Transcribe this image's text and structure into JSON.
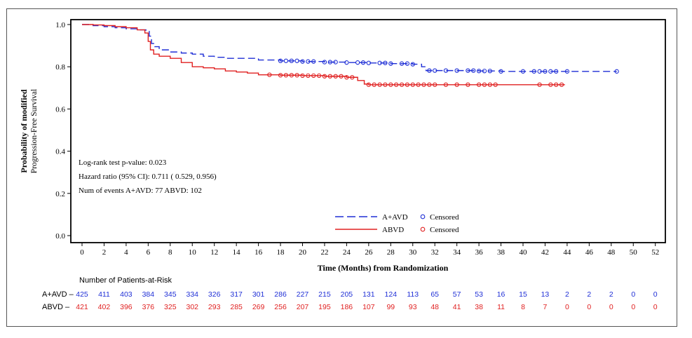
{
  "chart_data": {
    "type": "line",
    "subtype": "kaplan-meier",
    "ylabel_lines": [
      "Probability of modified",
      "Progression-Free Survival"
    ],
    "xlabel": "Time  (Months)  from  Randomization",
    "xlim": [
      0,
      52
    ],
    "ylim": [
      0.0,
      1.0
    ],
    "x_ticks": [
      0,
      2,
      4,
      6,
      8,
      10,
      12,
      14,
      16,
      18,
      20,
      22,
      24,
      26,
      28,
      30,
      32,
      34,
      36,
      38,
      40,
      42,
      44,
      46,
      48,
      50,
      52
    ],
    "y_ticks": [
      "0.0",
      "0.2",
      "0.4",
      "0.6",
      "0.8",
      "1.0"
    ],
    "annotations": [
      "Log-rank  test  p-value:  0.023",
      "Hazard  ratio  (95%  CI):    0.711  (  0.529,    0.956)",
      "Num of events A+AVD: 77   ABVD: 102"
    ],
    "legend": {
      "placement": "bottom-center",
      "censored_label": "Censored",
      "entries": [
        {
          "name": "A+AVD",
          "style": "dashed",
          "color": "#1f2fd6"
        },
        {
          "name": "ABVD",
          "style": "solid",
          "color": "#e02020"
        }
      ]
    },
    "series": [
      {
        "name": "A+AVD",
        "color": "#1f2fd6",
        "dash": true,
        "x": [
          0,
          1,
          2,
          3,
          4,
          5,
          5.8,
          6.1,
          6.3,
          6.6,
          7,
          8,
          9,
          10,
          11,
          12,
          13,
          14,
          16,
          18,
          20,
          22,
          24,
          26,
          28,
          30,
          30.8,
          31.2,
          32,
          34,
          36,
          38,
          40,
          42,
          44,
          46,
          48.5
        ],
        "y": [
          1.0,
          0.995,
          0.99,
          0.985,
          0.98,
          0.975,
          0.97,
          0.945,
          0.91,
          0.895,
          0.88,
          0.87,
          0.865,
          0.86,
          0.85,
          0.845,
          0.84,
          0.84,
          0.832,
          0.828,
          0.825,
          0.822,
          0.82,
          0.818,
          0.815,
          0.812,
          0.8,
          0.782,
          0.782,
          0.782,
          0.78,
          0.778,
          0.778,
          0.778,
          0.778,
          0.778,
          0.778
        ],
        "censored_x": [
          18,
          18.5,
          19,
          19.5,
          20,
          20.5,
          21,
          22,
          22.5,
          23,
          24,
          25,
          25.5,
          26,
          27,
          27.5,
          28,
          29,
          29.5,
          30,
          31.5,
          32,
          33,
          34,
          35,
          35.5,
          36,
          36.5,
          37,
          38,
          40,
          41,
          41.5,
          42,
          42.5,
          43,
          44,
          48.5
        ]
      },
      {
        "name": "ABVD",
        "color": "#e02020",
        "dash": false,
        "x": [
          0,
          1,
          2,
          3,
          4,
          5,
          5.7,
          6.0,
          6.2,
          6.5,
          7,
          8,
          9,
          10,
          11,
          12,
          13,
          14,
          15,
          16,
          18,
          20,
          22,
          24,
          25,
          25.6,
          26,
          28,
          30,
          32,
          34,
          36,
          38,
          40,
          42,
          43.8
        ],
        "y": [
          1.0,
          0.998,
          0.995,
          0.99,
          0.985,
          0.975,
          0.96,
          0.92,
          0.88,
          0.86,
          0.85,
          0.84,
          0.82,
          0.8,
          0.795,
          0.79,
          0.78,
          0.775,
          0.77,
          0.762,
          0.76,
          0.758,
          0.755,
          0.75,
          0.735,
          0.718,
          0.715,
          0.715,
          0.715,
          0.715,
          0.715,
          0.715,
          0.715,
          0.715,
          0.715,
          0.715
        ],
        "censored_x": [
          17,
          18,
          18.5,
          19,
          19.5,
          20,
          20.5,
          21,
          21.5,
          22,
          22.5,
          23,
          23.5,
          24,
          24.5,
          26,
          26.5,
          27,
          27.5,
          28,
          28.5,
          29,
          29.5,
          30,
          30.5,
          31,
          31.5,
          32,
          33,
          34,
          35,
          36,
          36.5,
          37,
          37.5,
          41.5,
          42.5,
          43,
          43.5
        ]
      }
    ],
    "risk_table": {
      "title": "Number of Patients-at-Risk",
      "rows": [
        {
          "label": "A+AVD",
          "color": "#1f2fd6",
          "values": [
            "425",
            "411",
            "403",
            "384",
            "345",
            "334",
            "326",
            "317",
            "301",
            "286",
            "227",
            "215",
            "205",
            "131",
            "124",
            "113",
            "65",
            "57",
            "53",
            "16",
            "15",
            "13",
            "2",
            "2",
            "2",
            "0",
            "0"
          ]
        },
        {
          "label": "ABVD",
          "color": "#e02020",
          "values": [
            "421",
            "402",
            "396",
            "376",
            "325",
            "302",
            "293",
            "285",
            "269",
            "256",
            "207",
            "195",
            "186",
            "107",
            "99",
            "93",
            "48",
            "41",
            "38",
            "11",
            "8",
            "7",
            "0",
            "0",
            "0",
            "0",
            "0"
          ]
        }
      ]
    }
  }
}
